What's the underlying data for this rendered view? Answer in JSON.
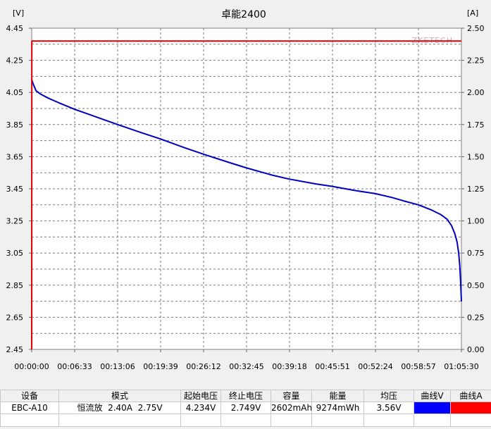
{
  "chart_data": {
    "type": "line",
    "title": "卓能2400",
    "watermark": "ZKETECH",
    "y_left_unit": "[V]",
    "y_right_unit": "[A]",
    "y_left_range": [
      2.45,
      4.45
    ],
    "y_right_range": [
      0.0,
      2.5
    ],
    "y_left_ticks": [
      "4.45",
      "4.25",
      "4.05",
      "3.85",
      "3.65",
      "3.45",
      "3.25",
      "3.05",
      "2.85",
      "2.65",
      "2.45"
    ],
    "y_right_ticks": [
      "2.50",
      "2.25",
      "2.00",
      "1.75",
      "1.50",
      "1.25",
      "1.00",
      "0.75",
      "0.50",
      "0.25",
      "0.00"
    ],
    "x_ticks": [
      "00:00:00",
      "00:06:33",
      "00:13:06",
      "00:19:39",
      "00:26:12",
      "00:32:45",
      "00:39:18",
      "00:45:51",
      "00:52:24",
      "00:58:57",
      "01:05:30"
    ],
    "x_range_seconds": [
      0,
      3930
    ],
    "grid": true,
    "series": [
      {
        "axis": "left",
        "color": "#0000c0",
        "points": [
          [
            0,
            4.13
          ],
          [
            15,
            4.1
          ],
          [
            40,
            4.06
          ],
          [
            80,
            4.04
          ],
          [
            150,
            4.015
          ],
          [
            250,
            3.985
          ],
          [
            393,
            3.945
          ],
          [
            600,
            3.895
          ],
          [
            786,
            3.85
          ],
          [
            1000,
            3.8
          ],
          [
            1179,
            3.76
          ],
          [
            1400,
            3.705
          ],
          [
            1572,
            3.665
          ],
          [
            1800,
            3.615
          ],
          [
            1965,
            3.58
          ],
          [
            2200,
            3.535
          ],
          [
            2358,
            3.51
          ],
          [
            2600,
            3.48
          ],
          [
            2751,
            3.465
          ],
          [
            2950,
            3.44
          ],
          [
            3144,
            3.42
          ],
          [
            3300,
            3.395
          ],
          [
            3400,
            3.375
          ],
          [
            3537,
            3.35
          ],
          [
            3650,
            3.32
          ],
          [
            3740,
            3.29
          ],
          [
            3800,
            3.26
          ],
          [
            3840,
            3.22
          ],
          [
            3870,
            3.17
          ],
          [
            3890,
            3.12
          ],
          [
            3905,
            3.05
          ],
          [
            3915,
            2.97
          ],
          [
            3922,
            2.88
          ],
          [
            3927,
            2.8
          ],
          [
            3930,
            2.749
          ]
        ]
      },
      {
        "axis": "right",
        "color": "#e00000",
        "points": [
          [
            0,
            0.0
          ],
          [
            1,
            2.4
          ],
          [
            3930,
            2.4
          ]
        ]
      }
    ]
  },
  "table": {
    "headers": [
      "设备",
      "模式",
      "起始电压",
      "终止电压",
      "容量",
      "能量",
      "均压",
      "曲线V",
      "曲线A"
    ],
    "row": [
      "EBC-A10",
      "恒流放  2.40A  2.75V",
      "4.234V",
      "2.749V",
      "2602mAh",
      "9274mWh",
      "3.56V"
    ],
    "curve_v_color": "#0000ff",
    "curve_a_color": "#ff0000"
  }
}
